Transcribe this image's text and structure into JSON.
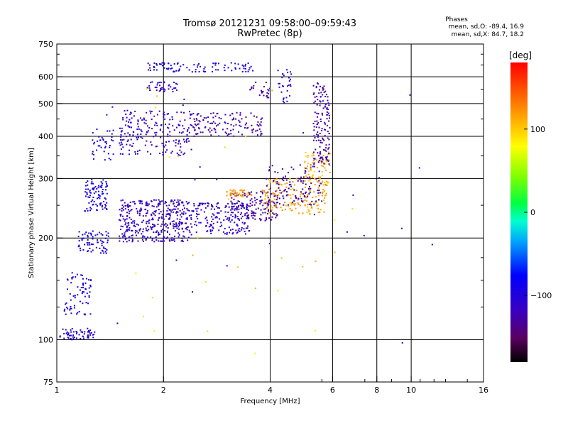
{
  "header": {
    "title_line1": "Tromsø 20121231 09:58:00–09:59:43",
    "title_line2": "RwPretec (8p)",
    "stats_heading": "Phases",
    "stats_o": "mean, sd,O: -89.4, 16.9",
    "stats_x": "mean, sd,X: 84.7, 18.2"
  },
  "colorbar": {
    "unit_label": "[deg]",
    "ticks": [
      {
        "label": "100",
        "value": 100
      },
      {
        "label": "0",
        "value": 0
      },
      {
        "label": "−100",
        "value": -100
      }
    ],
    "range": [
      -180,
      180
    ]
  },
  "chart_data": {
    "type": "scatter",
    "xlabel": "Frequency [MHz]",
    "ylabel": "Stationary phase Virtual Height [km]",
    "x_scale": "log",
    "y_scale": "log",
    "xlim": [
      1,
      16
    ],
    "ylim": [
      75,
      750
    ],
    "x_ticks": [
      {
        "label": "1",
        "value": 1
      },
      {
        "label": "2",
        "value": 2
      },
      {
        "label": "4",
        "value": 4
      },
      {
        "label": "6",
        "value": 6
      },
      {
        "label": "8",
        "value": 8
      },
      {
        "label": "10",
        "value": 10
      },
      {
        "label": "16",
        "value": 16
      }
    ],
    "x_grid": [
      1,
      2,
      4,
      6,
      8,
      10,
      16
    ],
    "x_grid_extra": [
      5.6,
      7.4,
      8.8,
      10.6,
      11.6,
      12.5,
      14.4
    ],
    "y_ticks": [
      {
        "label": "750",
        "value": 750
      },
      {
        "label": "600",
        "value": 600
      },
      {
        "label": "500",
        "value": 500
      },
      {
        "label": "400",
        "value": 400
      },
      {
        "label": "300",
        "value": 300
      },
      {
        "label": "200",
        "value": 200
      },
      {
        "label": "100",
        "value": 100
      },
      {
        "label": "75",
        "value": 75
      }
    ],
    "y_grid": [
      600,
      500,
      400,
      300,
      200,
      100
    ],
    "y_minor": [
      250,
      350,
      450,
      550,
      650,
      700,
      125,
      150,
      175
    ],
    "grid": true,
    "clusters": [
      {
        "x": [
          1.02,
          1.28
        ],
        "y": [
          100,
          108
        ],
        "phase": -105,
        "n": 60
      },
      {
        "x": [
          1.05,
          1.25
        ],
        "y": [
          118,
          160
        ],
        "phase": -95,
        "n": 70
      },
      {
        "x": [
          1.15,
          1.4
        ],
        "y": [
          180,
          210
        ],
        "phase": -95,
        "n": 70
      },
      {
        "x": [
          1.2,
          1.4
        ],
        "y": [
          240,
          300
        ],
        "phase": -90,
        "n": 90
      },
      {
        "x": [
          1.25,
          1.45
        ],
        "y": [
          340,
          420
        ],
        "phase": -95,
        "n": 40
      },
      {
        "x": [
          1.5,
          2.4
        ],
        "y": [
          195,
          260
        ],
        "phase": -115,
        "n": 400
      },
      {
        "x": [
          2.4,
          3.5
        ],
        "y": [
          205,
          255
        ],
        "phase": -110,
        "n": 180
      },
      {
        "x": [
          3.1,
          4.2
        ],
        "y": [
          225,
          275
        ],
        "phase": -130,
        "n": 120
      },
      {
        "x": [
          3.0,
          3.6
        ],
        "y": [
          265,
          278
        ],
        "phase": 120,
        "n": 40
      },
      {
        "x": [
          3.8,
          5.8
        ],
        "y": [
          235,
          300
        ],
        "phase": 115,
        "n": 160
      },
      {
        "x": [
          3.9,
          5.6
        ],
        "y": [
          250,
          330
        ],
        "phase": -125,
        "n": 120
      },
      {
        "x": [
          5.0,
          5.9
        ],
        "y": [
          290,
          360
        ],
        "phase": 110,
        "n": 70
      },
      {
        "x": [
          5.3,
          5.9
        ],
        "y": [
          330,
          580
        ],
        "phase": -125,
        "n": 140
      },
      {
        "x": [
          1.5,
          2.4
        ],
        "y": [
          350,
          480
        ],
        "phase": -110,
        "n": 200
      },
      {
        "x": [
          2.4,
          3.8
        ],
        "y": [
          400,
          470
        ],
        "phase": -125,
        "n": 130
      },
      {
        "x": [
          1.8,
          2.2
        ],
        "y": [
          540,
          580
        ],
        "phase": -115,
        "n": 40
      },
      {
        "x": [
          1.8,
          3.6
        ],
        "y": [
          620,
          660
        ],
        "phase": -95,
        "n": 90
      },
      {
        "x": [
          3.4,
          4.0
        ],
        "y": [
          520,
          580
        ],
        "phase": -120,
        "n": 25
      },
      {
        "x": [
          4.2,
          4.6
        ],
        "y": [
          500,
          640
        ],
        "phase": -110,
        "n": 30
      },
      {
        "x": [
          1.5,
          7.0
        ],
        "y": [
          90,
          600
        ],
        "phase": 100,
        "n": 30
      },
      {
        "x": [
          1.3,
          12.0
        ],
        "y": [
          95,
          560
        ],
        "phase": -110,
        "n": 30
      }
    ]
  }
}
